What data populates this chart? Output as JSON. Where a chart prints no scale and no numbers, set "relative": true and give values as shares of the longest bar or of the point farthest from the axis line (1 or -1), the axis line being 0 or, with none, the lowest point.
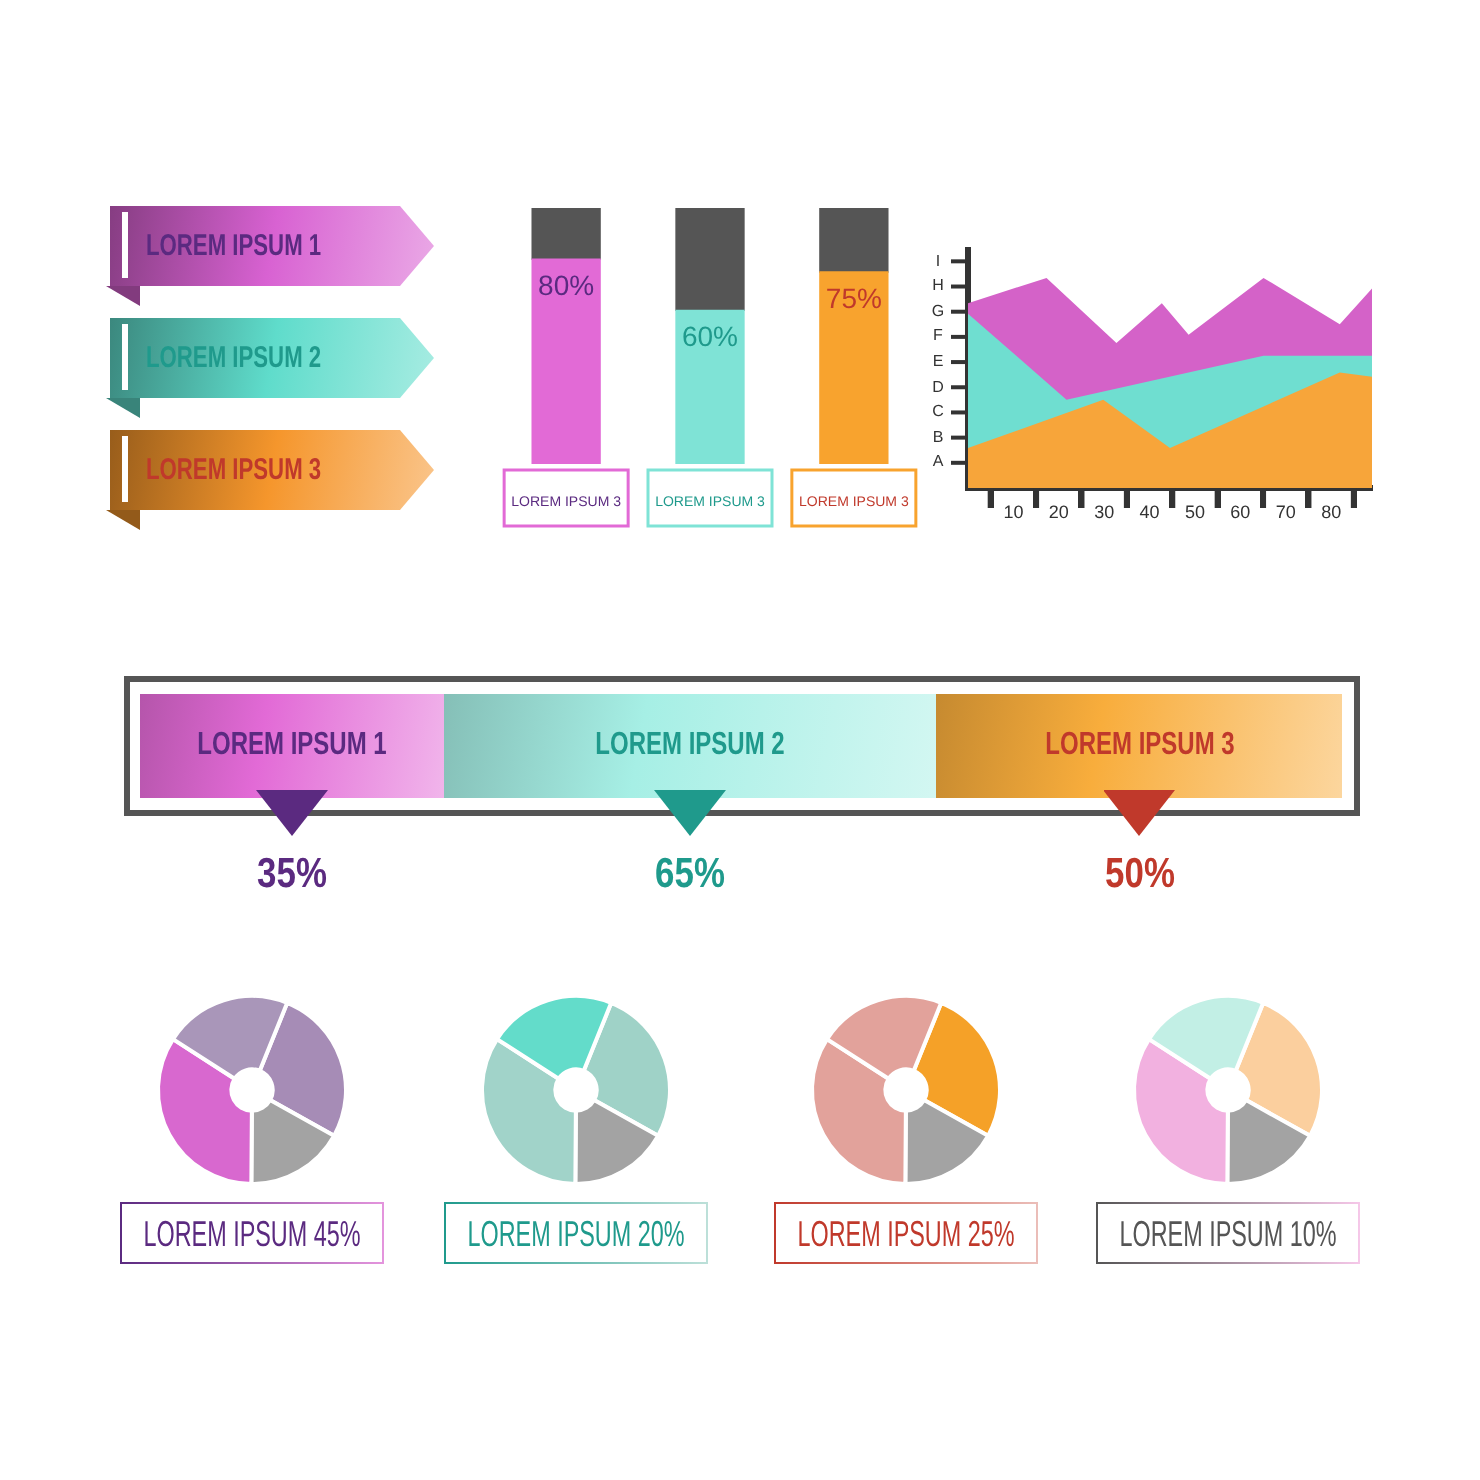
{
  "chart_data": [
    {
      "type": "other",
      "categories": [
        "LOREM IPSUM 1",
        "LOREM IPSUM 2",
        "LOREM IPSUM 3"
      ],
      "colors": [
        "#d862d2",
        "#5fdccb",
        "#f5962c"
      ]
    },
    {
      "type": "bar",
      "stacked": true,
      "categories": [
        "LOREM IPSUM 3",
        "LOREM IPSUM 3",
        "LOREM IPSUM 3"
      ],
      "series": [
        {
          "colors": [
            "#e26ad6",
            "#7fe3d6",
            "#f8a32e"
          ],
          "values": [
            80,
            60,
            75
          ],
          "value_labels": [
            "80%",
            "60%",
            "75%"
          ]
        },
        {
          "color": "#555555",
          "values": [
            20,
            40,
            25
          ]
        }
      ],
      "ylim": [
        0,
        100
      ],
      "tick_labels": "x"
    },
    {
      "type": "area",
      "relative": true,
      "series": [
        {
          "color": "#d462c8",
          "x": [
            0,
            17.3,
            32.7,
            42.7,
            48.6,
            65.1,
            81.9,
            89
          ],
          "values": [
            0.88,
            1,
            0.69,
            0.88,
            0.73,
            1,
            0.78,
            0.95
          ]
        },
        {
          "color": "#6fded0",
          "x": [
            0,
            21.7,
            65.1,
            89
          ],
          "values": [
            0.83,
            0.42,
            0.63,
            0.63
          ]
        },
        {
          "color": "#f7a53a",
          "x": [
            0,
            29.8,
            44.5,
            81.9,
            89
          ],
          "values": [
            0.19,
            0.42,
            0.19,
            0.55,
            0.53
          ]
        }
      ],
      "xlim": [
        0,
        89
      ],
      "xticks": [
        {
          "value": 5,
          "label": null
        },
        10,
        {
          "value": 15,
          "label": null
        },
        20,
        {
          "value": 25,
          "label": null
        },
        30,
        {
          "value": 35,
          "label": null
        },
        40,
        {
          "value": 45,
          "label": null
        },
        50,
        {
          "value": 55,
          "label": null
        },
        60,
        {
          "value": 65,
          "label": null
        },
        70,
        {
          "value": 75,
          "label": null
        },
        80,
        {
          "value": 85,
          "label": null
        }
      ],
      "annotations": [
        "A",
        "B",
        "C",
        "D",
        "E",
        "F",
        "G",
        "H",
        "I"
      ]
    },
    {
      "type": "other",
      "categories": [
        "LOREM IPSUM 1",
        "LOREM IPSUM 2",
        "LOREM IPSUM 3"
      ],
      "colors": [
        "#e26ad6",
        "#a6efe5",
        "#f8ad3c"
      ],
      "annotations": [
        "35%",
        "65%",
        "50%"
      ]
    },
    {
      "type": "donut",
      "categories": [
        null,
        null,
        null,
        null
      ],
      "values": [
        27,
        17,
        34,
        22
      ],
      "colors": [
        "#a68cb6",
        "#a3a3a3",
        "#d868cf",
        "#a996b9"
      ],
      "annotations": [
        "LOREM IPSUM 45%"
      ]
    },
    {
      "type": "donut",
      "categories": [
        null,
        null,
        null,
        null
      ],
      "values": [
        27,
        17,
        34,
        22
      ],
      "colors": [
        "#9fd2c7",
        "#a3a3a3",
        "#a1d3c9",
        "#63dcca"
      ],
      "annotations": [
        "LOREM IPSUM 20%"
      ]
    },
    {
      "type": "donut",
      "categories": [
        null,
        null,
        null,
        null
      ],
      "values": [
        27,
        17,
        34,
        22
      ],
      "colors": [
        "#f5a128",
        "#a3a3a3",
        "#e2a29b",
        "#e2a29b"
      ],
      "annotations": [
        "LOREM IPSUM 25%"
      ]
    },
    {
      "type": "donut",
      "categories": [
        null,
        null,
        null,
        null
      ],
      "values": [
        27,
        17,
        34,
        22
      ],
      "colors": [
        "#fbcf9e",
        "#a3a3a3",
        "#f2b1e0",
        "#c2efe5"
      ],
      "annotations": [
        "LOREM IPSUM 10%"
      ]
    }
  ]
}
